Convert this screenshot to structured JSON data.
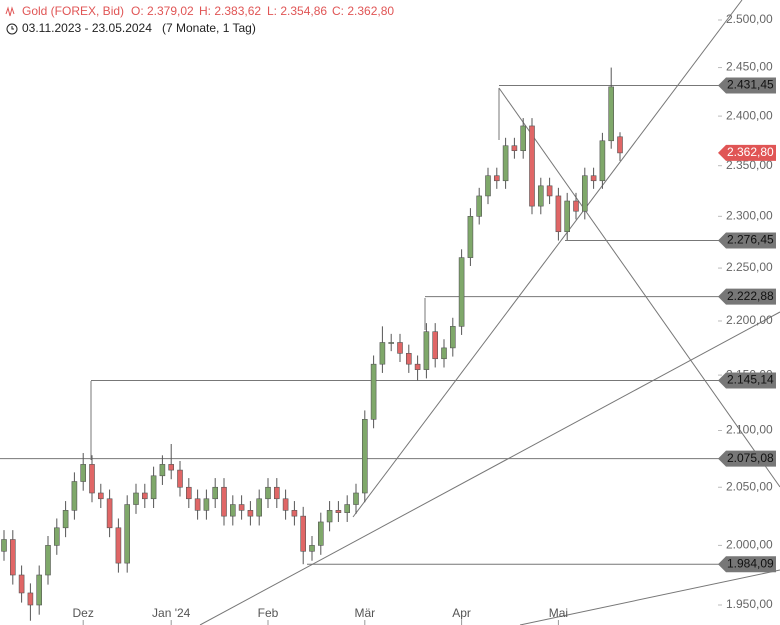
{
  "chart_data": {
    "type": "candlestick",
    "header": {
      "instrument": "Gold (FOREX, Bid)",
      "open": "O: 2.379,02",
      "high": "H: 2.383,62",
      "low": "L: 2.354,86",
      "close": "C: 2.362,80",
      "range": "03.11.2023 - 23.05.2024",
      "span": "(7 Monate, 1 Tag)"
    },
    "categories": [
      null,
      null,
      null,
      null,
      null,
      null,
      null,
      null,
      null,
      "Dez",
      null,
      null,
      null,
      null,
      null,
      null,
      null,
      null,
      null,
      "Jan '24",
      null,
      null,
      null,
      null,
      null,
      null,
      null,
      null,
      null,
      null,
      "Feb",
      null,
      null,
      null,
      null,
      null,
      null,
      null,
      null,
      null,
      null,
      "Mär",
      null,
      null,
      null,
      null,
      null,
      null,
      null,
      null,
      null,
      null,
      "Apr",
      null,
      null,
      null,
      null,
      null,
      null,
      null,
      null,
      null,
      null,
      "Mai",
      null,
      null,
      null,
      null,
      null,
      null,
      null
    ],
    "open": [
      1995,
      2005,
      1975,
      1960,
      1950,
      1975,
      2000,
      2015,
      2030,
      2055,
      2070,
      2045,
      2040,
      2015,
      1985,
      2035,
      2045,
      2040,
      2060,
      2070,
      2065,
      2050,
      2040,
      2030,
      2040,
      2050,
      2025,
      2035,
      2030,
      2025,
      2040,
      2050,
      2040,
      2030,
      2025,
      1995,
      2000,
      2020,
      2030,
      2028,
      2035,
      2045,
      2110,
      2160,
      2180,
      2180,
      2170,
      2160,
      2155,
      2190,
      2165,
      2175,
      2195,
      2260,
      2300,
      2320,
      2340,
      2335,
      2370,
      2365,
      2390,
      2310,
      2330,
      2320,
      2285,
      2315,
      2305,
      2340,
      2335,
      2375,
      2379.02
    ],
    "high": [
      2013,
      2013,
      1983,
      1968,
      1983,
      2008,
      2023,
      2038,
      2063,
      2080,
      2078,
      2053,
      2048,
      2023,
      2043,
      2053,
      2053,
      2068,
      2078,
      2088,
      2073,
      2058,
      2048,
      2048,
      2058,
      2058,
      2043,
      2043,
      2038,
      2048,
      2058,
      2058,
      2048,
      2038,
      2033,
      2008,
      2028,
      2038,
      2038,
      2043,
      2053,
      2118,
      2168,
      2195,
      2188,
      2188,
      2178,
      2168,
      2198,
      2198,
      2183,
      2203,
      2268,
      2308,
      2328,
      2348,
      2348,
      2378,
      2378,
      2398,
      2398,
      2338,
      2338,
      2328,
      2323,
      2323,
      2348,
      2348,
      2383,
      2450,
      2383.62
    ],
    "low": [
      1987,
      1967,
      1952,
      1937,
      1942,
      1967,
      1992,
      2007,
      2022,
      2047,
      2037,
      2032,
      2007,
      1977,
      1977,
      2027,
      2032,
      2032,
      2052,
      2057,
      2042,
      2032,
      2022,
      2022,
      2032,
      2017,
      2017,
      2022,
      2017,
      2017,
      2032,
      2032,
      2022,
      2017,
      1984.09,
      1987,
      1992,
      2012,
      2020,
      2020,
      2027,
      2037,
      2102,
      2152,
      2172,
      2162,
      2152,
      2145.14,
      2147,
      2157,
      2157,
      2167,
      2187,
      2252,
      2292,
      2312,
      2327,
      2327,
      2357,
      2357,
      2302,
      2302,
      2312,
      2276.45,
      2277,
      2297,
      2297,
      2327,
      2327,
      2367,
      2354.86
    ],
    "close": [
      2005,
      1975,
      1960,
      1950,
      1975,
      2000,
      2015,
      2030,
      2055,
      2070,
      2045,
      2040,
      2015,
      1985,
      2035,
      2045,
      2040,
      2060,
      2070,
      2065,
      2050,
      2040,
      2030,
      2040,
      2050,
      2025,
      2035,
      2030,
      2025,
      2040,
      2050,
      2040,
      2030,
      2025,
      1995,
      2000,
      2020,
      2030,
      2028,
      2035,
      2045,
      2110,
      2160,
      2180,
      2180,
      2170,
      2160,
      2155,
      2190,
      2165,
      2175,
      2195,
      2260,
      2300,
      2320,
      2340,
      2335,
      2370,
      2365,
      2390,
      2310,
      2330,
      2320,
      2285,
      2315,
      2305,
      2340,
      2335,
      2375,
      2430,
      2362.8
    ],
    "up_color": "#7fa86a",
    "down_color": "#e06666",
    "ylim": [
      1950,
      2500
    ],
    "log_scale": true,
    "yticks": [
      {
        "value": 1950,
        "label": "1.950,00"
      },
      {
        "value": 2000,
        "label": "2.000,00"
      },
      {
        "value": 2050,
        "label": "2.050,00"
      },
      {
        "value": 2100,
        "label": "2.100,00"
      },
      {
        "value": 2150,
        "label": "2.150,00"
      },
      {
        "value": 2200,
        "label": "2.200,00"
      },
      {
        "value": 2250,
        "label": "2.250,00"
      },
      {
        "value": 2300,
        "label": "2.300,00"
      },
      {
        "value": 2350,
        "label": "2.350,00"
      },
      {
        "value": 2400,
        "label": "2.400,00"
      },
      {
        "value": 2450,
        "label": "2.450,00"
      },
      {
        "value": 2500,
        "label": "2.500,00"
      }
    ],
    "levels": [
      {
        "value": 2431.45,
        "label": "2.431,45"
      },
      {
        "value": 2276.45,
        "label": "2.276,45"
      },
      {
        "value": 2222.88,
        "label": "2.222,88"
      },
      {
        "value": 2145.14,
        "label": "2.145,14"
      },
      {
        "value": 2075.08,
        "label": "2.075,08"
      },
      {
        "value": 1984.09,
        "label": "1.984,09"
      }
    ],
    "last_price": {
      "value": 2362.8,
      "label": "2.362,80",
      "color": "#e05555"
    }
  }
}
